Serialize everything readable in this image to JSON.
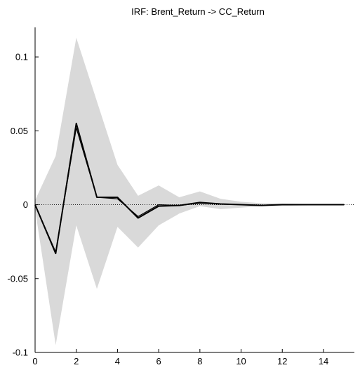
{
  "chart_data": {
    "type": "line",
    "title": "IRF: Brent_Return -> CC_Return",
    "xlabel": "",
    "ylabel": "",
    "xlim": [
      0,
      15.5
    ],
    "ylim": [
      -0.1,
      0.12
    ],
    "grid": false,
    "legend": "none",
    "x_ticks": [
      0,
      2,
      4,
      6,
      8,
      10,
      12,
      14
    ],
    "x_tick_labels": [
      "0",
      "2",
      "4",
      "6",
      "8",
      "10",
      "12",
      "14"
    ],
    "y_ticks": [
      -0.1,
      -0.05,
      0,
      0.05,
      0.1
    ],
    "y_tick_labels": [
      "-0.1",
      "-0.05",
      "0",
      "0.05",
      "0.1"
    ],
    "x": [
      0,
      1,
      2,
      3,
      4,
      5,
      6,
      7,
      8,
      9,
      10,
      11,
      12,
      13,
      14,
      15
    ],
    "band": {
      "upper": [
        0.003,
        0.033,
        0.113,
        0.07,
        0.027,
        0.006,
        0.013,
        0.005,
        0.009,
        0.004,
        0.002,
        0.001,
        0.0008,
        0.0005,
        0.0003,
        0.0002
      ],
      "lower": [
        -0.003,
        -0.095,
        -0.014,
        -0.057,
        -0.015,
        -0.029,
        -0.014,
        -0.006,
        -0.001,
        -0.003,
        -0.002,
        -0.001,
        -0.0008,
        -0.0005,
        -0.0003,
        -0.0002
      ]
    },
    "series": [
      {
        "values": [
          0,
          -0.033,
          0.055,
          0.005,
          0.005,
          -0.009,
          -0.001,
          -0.0005,
          0.0015,
          0.0005,
          0.0,
          -0.0005,
          0.0,
          0.0,
          0.0,
          0.0
        ]
      },
      {
        "values": [
          0,
          -0.032,
          0.052,
          0.005,
          0.004,
          -0.008,
          0.0,
          -0.0005,
          0.001,
          0.0003,
          0.0,
          -0.0003,
          0.0,
          0.0,
          0.0,
          0.0
        ]
      }
    ],
    "colors": {
      "band": "#d9d9d9",
      "line": "#000000",
      "axis": "#000000",
      "zero_line": "#000000"
    }
  }
}
